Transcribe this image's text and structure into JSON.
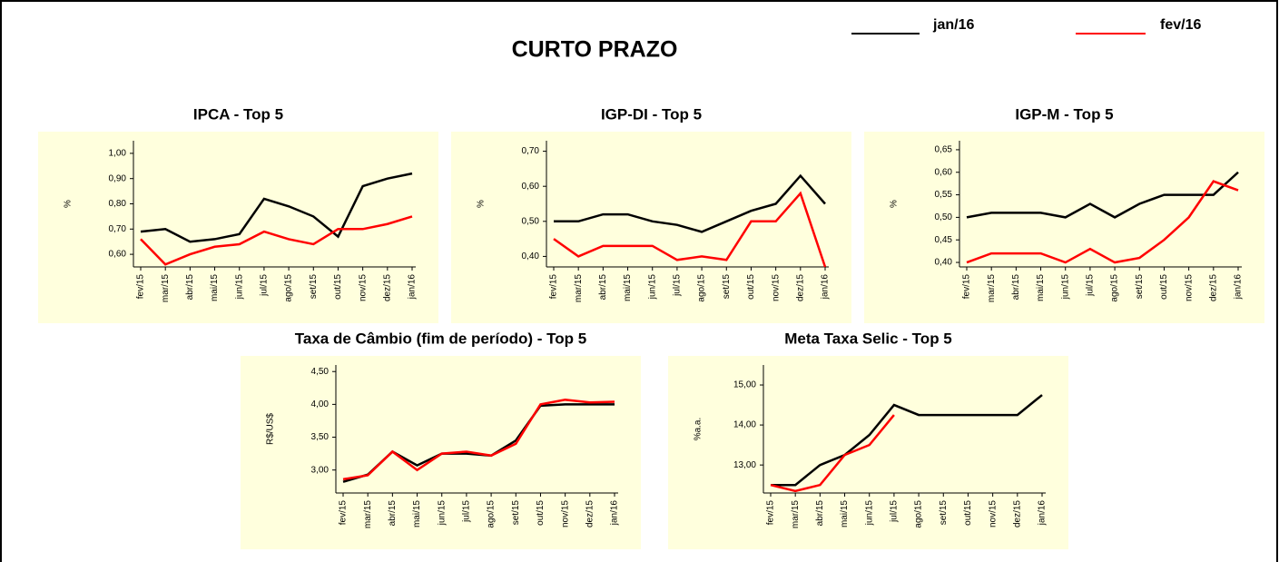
{
  "title": "CURTO PRAZO",
  "chart_data": [
    {
      "type": "line",
      "title": "IPCA - Top 5",
      "y_label": "%",
      "categories": [
        "fev/15",
        "mar/15",
        "abr/15",
        "mai/15",
        "jun/15",
        "jul/15",
        "ago/15",
        "set/15",
        "out/15",
        "nov/15",
        "dez/15",
        "jan/16"
      ],
      "series": [
        {
          "name": "jan/16",
          "color": "#000000",
          "values": [
            0.69,
            0.7,
            0.65,
            0.66,
            0.68,
            0.82,
            0.79,
            0.75,
            0.67,
            0.87,
            0.9,
            0.92
          ]
        },
        {
          "name": "fev/16",
          "color": "#ff0000",
          "values": [
            0.66,
            0.56,
            0.6,
            0.63,
            0.64,
            0.69,
            0.66,
            0.64,
            0.7,
            0.7,
            0.72,
            0.75
          ]
        }
      ],
      "ylim": [
        0.55,
        1.05
      ],
      "yticks": [
        {
          "value": 0.6,
          "label": "0,60"
        },
        {
          "value": 0.7,
          "label": "0,70"
        },
        {
          "value": 0.8,
          "label": "0,80"
        },
        {
          "value": 0.9,
          "label": "0,90"
        },
        {
          "value": 1,
          "label": "1,00"
        }
      ]
    },
    {
      "type": "line",
      "title": "IGP-DI - Top 5",
      "y_label": "%",
      "categories": [
        "fev/15",
        "mar/15",
        "abr/15",
        "mai/15",
        "jun/15",
        "jul/15",
        "ago/15",
        "set/15",
        "out/15",
        "nov/15",
        "dez/15",
        "jan/16"
      ],
      "series": [
        {
          "name": "jan/16",
          "color": "#000000",
          "values": [
            0.5,
            0.5,
            0.52,
            0.52,
            0.5,
            0.49,
            0.47,
            0.5,
            0.53,
            0.55,
            0.63,
            0.55
          ]
        },
        {
          "name": "fev/16",
          "color": "#ff0000",
          "values": [
            0.45,
            0.4,
            0.43,
            0.43,
            0.43,
            0.39,
            0.4,
            0.39,
            0.5,
            0.5,
            0.58,
            0.37
          ]
        }
      ],
      "ylim": [
        0.37,
        0.73
      ],
      "yticks": [
        {
          "value": 0.4,
          "label": "0,40"
        },
        {
          "value": 0.5,
          "label": "0,50"
        },
        {
          "value": 0.6,
          "label": "0,60"
        },
        {
          "value": 0.7,
          "label": "0,70"
        }
      ]
    },
    {
      "type": "line",
      "title": "IGP-M - Top 5",
      "y_label": "%",
      "categories": [
        "fev/15",
        "mar/15",
        "abr/15",
        "mai/15",
        "jun/15",
        "jul/15",
        "ago/15",
        "set/15",
        "out/15",
        "nov/15",
        "dez/15",
        "jan/16"
      ],
      "series": [
        {
          "name": "jan/16",
          "color": "#000000",
          "values": [
            0.5,
            0.51,
            0.51,
            0.51,
            0.5,
            0.53,
            0.5,
            0.53,
            0.55,
            0.55,
            0.55,
            0.6
          ]
        },
        {
          "name": "fev/16",
          "color": "#ff0000",
          "values": [
            0.4,
            0.42,
            0.42,
            0.42,
            0.4,
            0.43,
            0.4,
            0.41,
            0.45,
            0.5,
            0.58,
            0.56
          ]
        }
      ],
      "ylim": [
        0.39,
        0.67
      ],
      "yticks": [
        {
          "value": 0.4,
          "label": "0,40"
        },
        {
          "value": 0.45,
          "label": "0,45"
        },
        {
          "value": 0.5,
          "label": "0,50"
        },
        {
          "value": 0.55,
          "label": "0,55"
        },
        {
          "value": 0.6,
          "label": "0,60"
        },
        {
          "value": 0.65,
          "label": "0,65"
        }
      ]
    },
    {
      "type": "line",
      "title": "Taxa de Câmbio (fim de período) - Top 5",
      "y_label": "R$/US$",
      "categories": [
        "fev/15",
        "mar/15",
        "abr/15",
        "mai/15",
        "jun/15",
        "jul/15",
        "ago/15",
        "set/15",
        "out/15",
        "nov/15",
        "dez/15",
        "jan/16"
      ],
      "series": [
        {
          "name": "jan/16",
          "color": "#000000",
          "values": [
            2.82,
            2.93,
            3.28,
            3.07,
            3.25,
            3.25,
            3.22,
            3.45,
            3.98,
            4.0,
            4.0,
            4.0
          ]
        },
        {
          "name": "fev/16",
          "color": "#ff0000",
          "values": [
            2.86,
            2.92,
            3.28,
            3.0,
            3.25,
            3.28,
            3.22,
            3.4,
            4.0,
            4.07,
            4.03,
            4.04
          ]
        }
      ],
      "ylim": [
        2.65,
        4.6
      ],
      "yticks": [
        {
          "value": 3,
          "label": "3,00"
        },
        {
          "value": 3.5,
          "label": "3,50"
        },
        {
          "value": 4,
          "label": "4,00"
        },
        {
          "value": 4.5,
          "label": "4,50"
        }
      ]
    },
    {
      "type": "line",
      "title": "Meta Taxa Selic - Top 5",
      "y_label": "%a.a.",
      "categories": [
        "fev/15",
        "mar/15",
        "abr/15",
        "mai/15",
        "jun/15",
        "jul/15",
        "ago/15",
        "set/15",
        "out/15",
        "nov/15",
        "dez/15",
        "jan/16"
      ],
      "series": [
        {
          "name": "jan/16",
          "color": "#000000",
          "values": [
            12.5,
            12.5,
            13.0,
            13.25,
            13.75,
            14.5,
            14.25,
            14.25,
            14.25,
            14.25,
            14.25,
            14.75
          ]
        },
        {
          "name": "fev/16",
          "color": "#ff0000",
          "values": [
            12.5,
            12.35,
            12.5,
            13.25,
            13.5,
            14.25,
            null,
            null,
            null,
            null,
            null,
            null
          ]
        }
      ],
      "ylim": [
        12.3,
        15.5
      ],
      "yticks": [
        {
          "value": 13,
          "label": "13,00"
        },
        {
          "value": 14,
          "label": "14,00"
        },
        {
          "value": 15,
          "label": "15,00"
        }
      ]
    }
  ]
}
